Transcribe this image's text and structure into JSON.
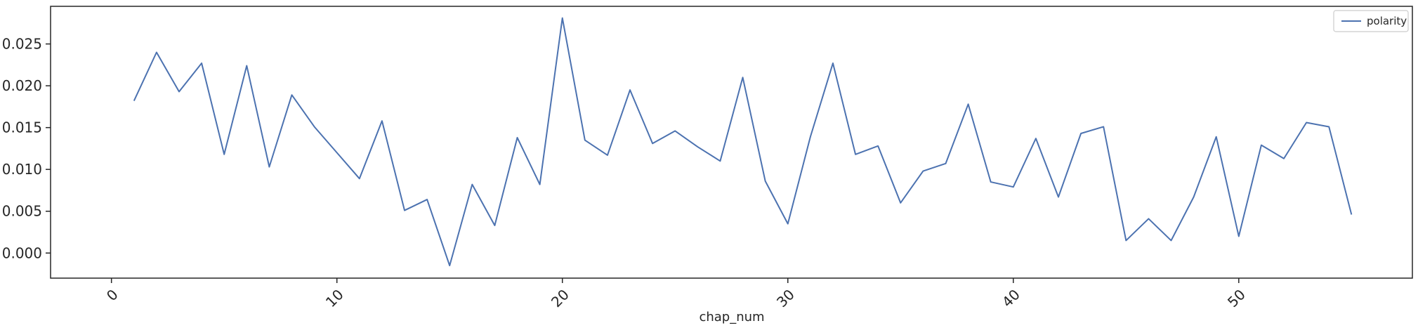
{
  "chart_data": {
    "type": "line",
    "xlabel": "chap_num",
    "ylabel": "",
    "xlim": [
      -2.7,
      57.7
    ],
    "ylim": [
      -0.003,
      0.0295
    ],
    "xticks": [
      0,
      10,
      20,
      30,
      40,
      50
    ],
    "xtick_rotation": 45,
    "yticks": [
      0.0,
      0.005,
      0.01,
      0.015,
      0.02,
      0.025
    ],
    "ytick_labels": [
      "0.000",
      "0.005",
      "0.010",
      "0.015",
      "0.020",
      "0.025"
    ],
    "grid": false,
    "legend": {
      "position": "top-right",
      "entries": [
        "polarity"
      ]
    },
    "series": [
      {
        "name": "polarity",
        "color": "#4c72b0",
        "x": [
          1,
          2,
          3,
          4,
          5,
          6,
          7,
          8,
          9,
          10,
          11,
          12,
          13,
          14,
          15,
          16,
          17,
          18,
          19,
          20,
          21,
          22,
          23,
          24,
          25,
          26,
          27,
          28,
          29,
          30,
          31,
          32,
          33,
          34,
          35,
          36,
          37,
          38,
          39,
          40,
          41,
          42,
          43,
          44,
          45,
          46,
          47,
          48,
          49,
          50,
          51,
          52,
          53,
          54,
          55
        ],
        "values": [
          0.0182,
          0.024,
          0.0193,
          0.0227,
          0.0118,
          0.0224,
          0.0103,
          0.0189,
          0.0151,
          0.012,
          0.0089,
          0.0158,
          0.0051,
          0.0064,
          -0.0015,
          0.0082,
          0.0033,
          0.0138,
          0.0082,
          0.0281,
          0.0135,
          0.0117,
          0.0195,
          0.0131,
          0.0146,
          0.0127,
          0.011,
          0.021,
          0.0086,
          0.0035,
          0.0139,
          0.0227,
          0.0118,
          0.0128,
          0.006,
          0.0098,
          0.0107,
          0.0178,
          0.0085,
          0.0079,
          0.0137,
          0.0067,
          0.0143,
          0.0151,
          0.0015,
          0.0041,
          0.0015,
          0.0067,
          0.0139,
          0.002,
          0.0129,
          0.0113,
          0.0156,
          0.0151,
          0.0046
        ]
      }
    ]
  }
}
